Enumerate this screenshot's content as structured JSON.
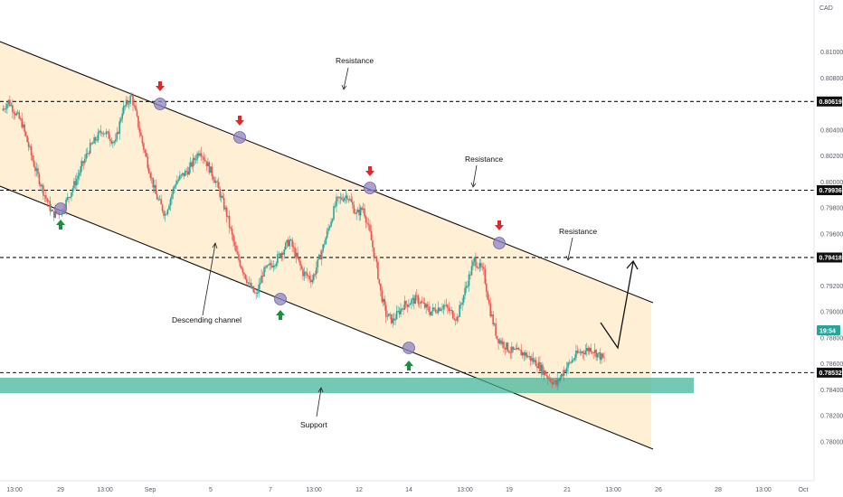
{
  "chart_data": {
    "type": "candlestick",
    "currency": "CAD",
    "y_range": [
      0.777,
      0.814
    ],
    "y_ticks": [
      "0.81000",
      "0.80800",
      "0.80400",
      "0.80200",
      "0.80000",
      "0.79800",
      "0.79600",
      "0.79200",
      "0.79000",
      "0.78800",
      "0.78600",
      "0.78400",
      "0.78200",
      "0.78000"
    ],
    "x_ticks": [
      "13:00",
      "29",
      "13:00",
      "Sep",
      "5",
      "7",
      "13:00",
      "12",
      "14",
      "13:00",
      "19",
      "21",
      "13:00",
      "26",
      "28",
      "13:00",
      "Oct"
    ],
    "levels": [
      {
        "label": "0.80619",
        "value": 0.80619,
        "kind": "resistance"
      },
      {
        "label": "0.79936",
        "value": 0.79936,
        "kind": "resistance"
      },
      {
        "label": "0.79418",
        "value": 0.79418,
        "kind": "resistance"
      },
      {
        "label": "0.78532",
        "value": 0.78532,
        "kind": "support"
      }
    ],
    "current_time_label": "19:54",
    "annotations": {
      "resistance_1": "Resistance",
      "resistance_2": "Resistance",
      "resistance_3": "Resistance",
      "support": "Support",
      "channel": "Descending channel"
    },
    "colors": {
      "up": "#26a69a",
      "down": "#ef5350",
      "up_dark": "#1b8f3e",
      "support_zone": "#3fb498",
      "channel_fill": "#fde2b3",
      "touch_marker": "#8d83c0"
    }
  }
}
